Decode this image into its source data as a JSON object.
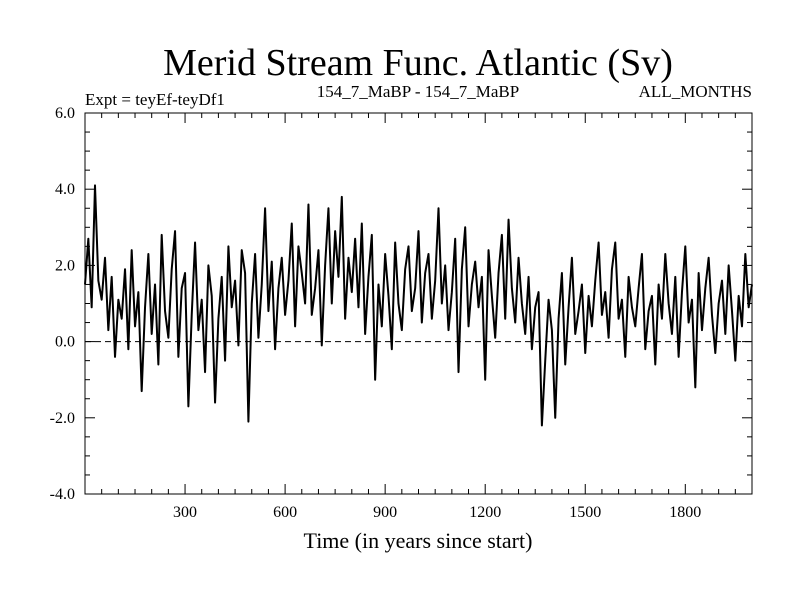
{
  "chart_data": {
    "type": "line",
    "title": "Merid Stream Func. Atlantic (Sv)",
    "subtitle_left": "Expt = teyEf-teyDf1",
    "subtitle_center": "154_7_MaBP - 154_7_MaBP",
    "subtitle_right": "ALL_MONTHS",
    "xlabel": "Time (in years since start)",
    "ylabel": "",
    "xlim": [
      0,
      2000
    ],
    "ylim": [
      -4.0,
      6.0
    ],
    "xticks_major": [
      300,
      600,
      900,
      1200,
      1500,
      1800
    ],
    "xtick_labels": [
      "300",
      "600",
      "900",
      "1200",
      "1500",
      "1800"
    ],
    "yticks_major": [
      -4.0,
      -2.0,
      0.0,
      2.0,
      4.0,
      6.0
    ],
    "ytick_labels": [
      "-4.0",
      "-2.0",
      "0.0",
      "2.0",
      "4.0",
      "6.0"
    ],
    "reference_line": 0.0,
    "grid": false,
    "series": [
      {
        "name": "teyEf-teyDf1",
        "x": [
          0,
          10,
          20,
          30,
          40,
          50,
          60,
          70,
          80,
          90,
          100,
          110,
          120,
          130,
          140,
          150,
          160,
          170,
          180,
          190,
          200,
          210,
          220,
          230,
          240,
          250,
          260,
          270,
          280,
          290,
          300,
          310,
          320,
          330,
          340,
          350,
          360,
          370,
          380,
          390,
          400,
          410,
          420,
          430,
          440,
          450,
          460,
          470,
          480,
          490,
          500,
          510,
          520,
          530,
          540,
          550,
          560,
          570,
          580,
          590,
          600,
          610,
          620,
          630,
          640,
          650,
          660,
          670,
          680,
          690,
          700,
          710,
          720,
          730,
          740,
          750,
          760,
          770,
          780,
          790,
          800,
          810,
          820,
          830,
          840,
          850,
          860,
          870,
          880,
          890,
          900,
          910,
          920,
          930,
          940,
          950,
          960,
          970,
          980,
          990,
          1000,
          1010,
          1020,
          1030,
          1040,
          1050,
          1060,
          1070,
          1080,
          1090,
          1100,
          1110,
          1120,
          1130,
          1140,
          1150,
          1160,
          1170,
          1180,
          1190,
          1200,
          1210,
          1220,
          1230,
          1240,
          1250,
          1260,
          1270,
          1280,
          1290,
          1300,
          1310,
          1320,
          1330,
          1340,
          1350,
          1360,
          1370,
          1380,
          1390,
          1400,
          1410,
          1420,
          1430,
          1440,
          1450,
          1460,
          1470,
          1480,
          1490,
          1500,
          1510,
          1520,
          1530,
          1540,
          1550,
          1560,
          1570,
          1580,
          1590,
          1600,
          1610,
          1620,
          1630,
          1640,
          1650,
          1660,
          1670,
          1680,
          1690,
          1700,
          1710,
          1720,
          1730,
          1740,
          1750,
          1760,
          1770,
          1780,
          1790,
          1800,
          1810,
          1820,
          1830,
          1840,
          1850,
          1860,
          1870,
          1880,
          1890,
          1900,
          1910,
          1920,
          1930,
          1940,
          1950,
          1960,
          1970,
          1980,
          1990,
          2000
        ],
        "values": [
          1.5,
          2.7,
          0.9,
          4.1,
          1.6,
          1.1,
          2.2,
          0.3,
          1.7,
          -0.4,
          1.1,
          0.6,
          1.9,
          -0.2,
          2.4,
          0.4,
          1.3,
          -1.3,
          0.9,
          2.3,
          0.2,
          1.5,
          -0.6,
          2.8,
          0.8,
          0.1,
          1.9,
          2.9,
          -0.4,
          1.4,
          1.8,
          -1.7,
          0.7,
          2.6,
          0.3,
          1.1,
          -0.8,
          2.0,
          1.2,
          -1.6,
          0.6,
          1.7,
          -0.5,
          2.5,
          0.9,
          1.6,
          -0.1,
          2.4,
          1.8,
          -2.1,
          1.0,
          2.3,
          0.1,
          1.5,
          3.5,
          0.8,
          2.1,
          -0.2,
          1.4,
          2.2,
          0.7,
          1.6,
          3.1,
          0.4,
          2.5,
          1.8,
          1.0,
          3.6,
          0.7,
          1.4,
          2.4,
          -0.1,
          2.0,
          3.5,
          1.0,
          2.9,
          1.7,
          3.8,
          0.6,
          2.2,
          1.3,
          2.7,
          0.9,
          3.1,
          0.2,
          1.7,
          2.8,
          -1.0,
          1.5,
          0.4,
          2.3,
          1.2,
          -0.2,
          2.6,
          1.0,
          0.3,
          1.9,
          2.5,
          0.8,
          1.4,
          2.9,
          0.5,
          1.8,
          2.3,
          0.6,
          1.6,
          3.5,
          1.0,
          2.0,
          0.3,
          1.3,
          2.7,
          -0.8,
          1.9,
          3.0,
          0.4,
          1.5,
          2.1,
          0.9,
          1.7,
          -1.0,
          2.4,
          1.2,
          0.1,
          1.8,
          2.8,
          0.6,
          3.2,
          1.4,
          0.5,
          2.2,
          1.0,
          0.2,
          1.7,
          -0.2,
          0.9,
          1.3,
          -2.2,
          -0.5,
          1.1,
          0.3,
          -2.0,
          0.6,
          1.8,
          -0.6,
          0.9,
          2.2,
          0.2,
          0.8,
          1.5,
          -0.3,
          1.2,
          0.4,
          1.6,
          2.6,
          0.7,
          1.3,
          0.1,
          1.9,
          2.6,
          0.6,
          1.1,
          -0.4,
          1.7,
          0.9,
          0.4,
          1.4,
          2.3,
          -0.2,
          0.8,
          1.2,
          -0.6,
          1.5,
          0.6,
          2.3,
          1.0,
          0.2,
          1.7,
          -0.4,
          1.3,
          2.5,
          0.5,
          1.1,
          -1.2,
          1.8,
          0.3,
          1.4,
          2.2,
          0.7,
          -0.3,
          1.0,
          1.6,
          0.2,
          2.0,
          0.8,
          -0.5,
          1.2,
          0.4,
          2.3,
          0.9,
          1.5
        ]
      }
    ]
  }
}
